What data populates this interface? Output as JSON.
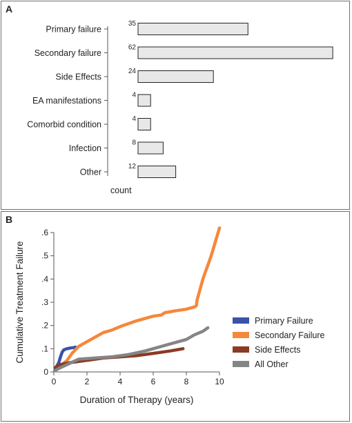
{
  "panels": {
    "a": "A",
    "b": "B"
  },
  "chart_data": [
    {
      "type": "bar",
      "orientation": "horizontal",
      "categories": [
        "Primary failure",
        "Secondary failure",
        "Side Effects",
        "EA manifestations",
        "Comorbid condition",
        "Infection",
        "Other"
      ],
      "values": [
        35,
        62,
        24,
        4,
        4,
        8,
        12
      ],
      "data_labels": [
        "35",
        "62",
        "24",
        "4",
        "4",
        "8",
        "12"
      ],
      "xlabel": "count",
      "bar_color": "#e8e8e8",
      "bar_edge_color": "#222222"
    },
    {
      "type": "line",
      "xlabel": "Duration of Therapy (years)",
      "ylabel": "Cumulative Treatment Failure",
      "xlim": [
        0,
        10
      ],
      "ylim": [
        0,
        0.6
      ],
      "xticks": [
        0,
        2,
        4,
        6,
        8,
        10
      ],
      "xtick_labels": [
        "0",
        "2",
        "4",
        "6",
        "8",
        "10"
      ],
      "yticks": [
        0,
        0.1,
        0.2,
        0.3,
        0.4,
        0.5,
        0.6
      ],
      "ytick_labels": [
        "0",
        ".1",
        ".2",
        ".3",
        ".4",
        ".5",
        ".6"
      ],
      "legend_position": "right",
      "series": [
        {
          "name": "Primary Failure",
          "color": "#3a52a8",
          "x": [
            0.1,
            0.3,
            0.38,
            0.45,
            0.5,
            0.6,
            0.8,
            1.0,
            1.2,
            1.3
          ],
          "y": [
            0.015,
            0.04,
            0.06,
            0.075,
            0.085,
            0.095,
            0.1,
            0.103,
            0.105,
            0.107
          ]
        },
        {
          "name": "Secondary Failure",
          "color": "#f5883a",
          "x": [
            0.3,
            0.8,
            1.1,
            1.5,
            2.0,
            2.5,
            3.0,
            3.5,
            4.0,
            5.0,
            6.0,
            6.5,
            6.7,
            7.5,
            8.0,
            8.5,
            8.6,
            8.65,
            9.0,
            9.5,
            10.0
          ],
          "y": [
            0.02,
            0.05,
            0.08,
            0.11,
            0.13,
            0.15,
            0.17,
            0.18,
            0.195,
            0.22,
            0.24,
            0.245,
            0.255,
            0.265,
            0.27,
            0.28,
            0.285,
            0.31,
            0.4,
            0.5,
            0.62
          ]
        },
        {
          "name": "Side Effects",
          "color": "#8b3a24",
          "x": [
            0.1,
            0.3,
            0.6,
            1.0,
            2.0,
            3.0,
            4.0,
            5.0,
            6.0,
            7.0,
            7.8
          ],
          "y": [
            0.02,
            0.03,
            0.035,
            0.04,
            0.05,
            0.06,
            0.065,
            0.07,
            0.08,
            0.09,
            0.1
          ]
        },
        {
          "name": "All Other",
          "color": "#858585",
          "x": [
            0.05,
            0.3,
            0.6,
            0.9,
            1.2,
            1.5,
            2.5,
            3.5,
            4.5,
            5.5,
            6.0,
            7.0,
            8.0,
            8.5,
            9.0,
            9.3
          ],
          "y": [
            0.005,
            0.015,
            0.025,
            0.035,
            0.045,
            0.055,
            0.06,
            0.065,
            0.075,
            0.09,
            0.1,
            0.12,
            0.14,
            0.16,
            0.175,
            0.19
          ]
        }
      ]
    }
  ]
}
